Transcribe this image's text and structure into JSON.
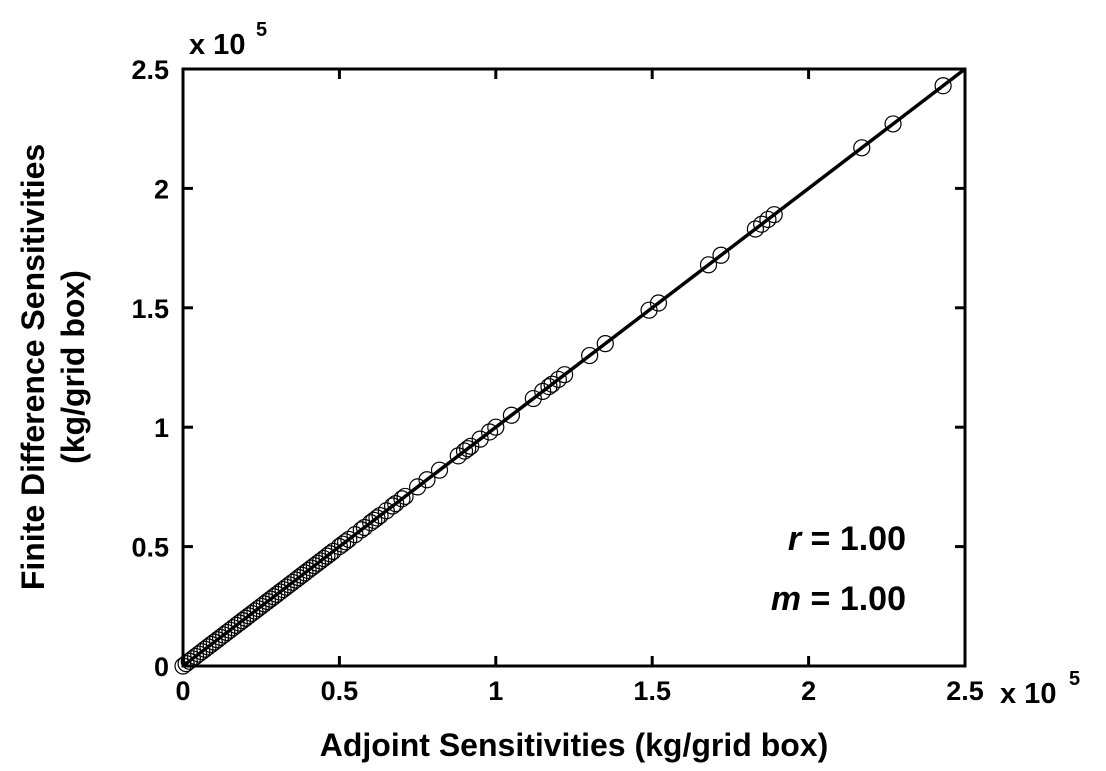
{
  "chart_data": {
    "type": "scatter",
    "title": "",
    "xlabel": "Adjoint Sensitivities (kg/grid box)",
    "ylabel_line1": "Finite Difference Sensitivities",
    "ylabel_line2": "(kg/grid box)",
    "xlim": [
      0,
      2.5
    ],
    "ylim": [
      0,
      2.5
    ],
    "xticks": [
      0,
      0.5,
      1,
      1.5,
      2,
      2.5
    ],
    "xtick_labels": [
      "0",
      "0.5",
      "1",
      "1.5",
      "2",
      "2.5"
    ],
    "yticks": [
      0,
      0.5,
      1,
      1.5,
      2,
      2.5
    ],
    "ytick_labels": [
      "0",
      "0.5",
      "1",
      "1.5",
      "2",
      "2.5"
    ],
    "x_exponent": {
      "base": "x 10",
      "power": "5"
    },
    "y_exponent": {
      "base": "x 10",
      "power": "5"
    },
    "grid": false,
    "fit_line": {
      "x": [
        0,
        2.5
      ],
      "y": [
        0,
        2.5
      ]
    },
    "annotations": [
      {
        "var": "r",
        "text": " = 1.00"
      },
      {
        "var": "m",
        "text": " = 1.00"
      }
    ],
    "points": [
      [
        0,
        0
      ],
      [
        0.01,
        0.01
      ],
      [
        0.02,
        0.02
      ],
      [
        0.03,
        0.03
      ],
      [
        0.04,
        0.04
      ],
      [
        0.05,
        0.05
      ],
      [
        0.06,
        0.06
      ],
      [
        0.07,
        0.07
      ],
      [
        0.08,
        0.08
      ],
      [
        0.09,
        0.09
      ],
      [
        0.1,
        0.1
      ],
      [
        0.11,
        0.11
      ],
      [
        0.12,
        0.12
      ],
      [
        0.13,
        0.13
      ],
      [
        0.14,
        0.14
      ],
      [
        0.15,
        0.15
      ],
      [
        0.16,
        0.16
      ],
      [
        0.17,
        0.17
      ],
      [
        0.18,
        0.18
      ],
      [
        0.19,
        0.19
      ],
      [
        0.2,
        0.2
      ],
      [
        0.21,
        0.21
      ],
      [
        0.22,
        0.22
      ],
      [
        0.23,
        0.23
      ],
      [
        0.24,
        0.24
      ],
      [
        0.25,
        0.25
      ],
      [
        0.26,
        0.26
      ],
      [
        0.27,
        0.27
      ],
      [
        0.28,
        0.28
      ],
      [
        0.29,
        0.29
      ],
      [
        0.3,
        0.3
      ],
      [
        0.31,
        0.31
      ],
      [
        0.32,
        0.32
      ],
      [
        0.33,
        0.33
      ],
      [
        0.34,
        0.34
      ],
      [
        0.35,
        0.35
      ],
      [
        0.36,
        0.36
      ],
      [
        0.37,
        0.37
      ],
      [
        0.38,
        0.38
      ],
      [
        0.39,
        0.39
      ],
      [
        0.4,
        0.4
      ],
      [
        0.41,
        0.41
      ],
      [
        0.42,
        0.42
      ],
      [
        0.43,
        0.43
      ],
      [
        0.44,
        0.44
      ],
      [
        0.45,
        0.45
      ],
      [
        0.46,
        0.46
      ],
      [
        0.47,
        0.47
      ],
      [
        0.48,
        0.48
      ],
      [
        0.5,
        0.5
      ],
      [
        0.51,
        0.51
      ],
      [
        0.52,
        0.52
      ],
      [
        0.53,
        0.53
      ],
      [
        0.55,
        0.55
      ],
      [
        0.57,
        0.57
      ],
      [
        0.58,
        0.58
      ],
      [
        0.6,
        0.6
      ],
      [
        0.61,
        0.61
      ],
      [
        0.62,
        0.62
      ],
      [
        0.63,
        0.63
      ],
      [
        0.65,
        0.65
      ],
      [
        0.67,
        0.67
      ],
      [
        0.68,
        0.68
      ],
      [
        0.7,
        0.7
      ],
      [
        0.71,
        0.71
      ],
      [
        0.75,
        0.75
      ],
      [
        0.78,
        0.78
      ],
      [
        0.82,
        0.82
      ],
      [
        0.88,
        0.88
      ],
      [
        0.9,
        0.9
      ],
      [
        0.91,
        0.91
      ],
      [
        0.92,
        0.92
      ],
      [
        0.95,
        0.95
      ],
      [
        0.98,
        0.98
      ],
      [
        1.0,
        1.0
      ],
      [
        1.05,
        1.05
      ],
      [
        1.12,
        1.12
      ],
      [
        1.15,
        1.15
      ],
      [
        1.17,
        1.17
      ],
      [
        1.18,
        1.18
      ],
      [
        1.2,
        1.2
      ],
      [
        1.22,
        1.22
      ],
      [
        1.3,
        1.3
      ],
      [
        1.35,
        1.35
      ],
      [
        1.49,
        1.49
      ],
      [
        1.52,
        1.52
      ],
      [
        1.68,
        1.68
      ],
      [
        1.72,
        1.72
      ],
      [
        1.83,
        1.83
      ],
      [
        1.85,
        1.85
      ],
      [
        1.87,
        1.87
      ],
      [
        1.89,
        1.89
      ],
      [
        2.17,
        2.17
      ],
      [
        2.27,
        2.27
      ],
      [
        2.43,
        2.43
      ]
    ]
  }
}
